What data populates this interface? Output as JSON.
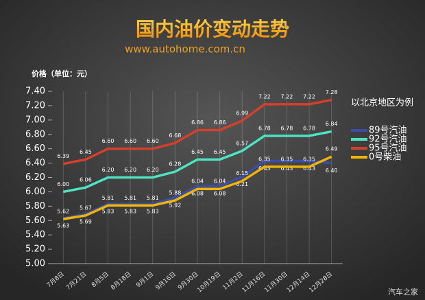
{
  "chart_data": {
    "type": "line",
    "title": "国内油价变动走势",
    "subtitle": "www.autohome.com.cn",
    "y_label": "价格（单位：元）",
    "legend_title": "以北京地区为例",
    "watermark": "汽车之家",
    "categories": [
      "7月8日",
      "7月21日",
      "8月5日",
      "8月18日",
      "9月1日",
      "9月16日",
      "9月30日",
      "10月19日",
      "11月2日",
      "11月16日",
      "11月30日",
      "12月14日",
      "12月28日"
    ],
    "series": [
      {
        "name": "89号汽油",
        "color": "#3b4ea6",
        "values": [
          5.63,
          5.69,
          5.83,
          5.83,
          5.83,
          5.92,
          6.08,
          6.08,
          6.21,
          6.43,
          6.43,
          6.43,
          6.4
        ],
        "value_labels": [
          "5.63",
          "5.69",
          "5.83",
          "5.83",
          "5.83",
          "5.92",
          "6.08",
          "6.08",
          "6.21",
          "6.43",
          "6.43",
          "6.43",
          "6.40"
        ]
      },
      {
        "name": "92号汽油",
        "color": "#4ee3c3",
        "values": [
          6,
          6.06,
          6.2,
          6.2,
          6.2,
          6.28,
          6.45,
          6.45,
          6.57,
          6.78,
          6.78,
          6.78,
          6.84
        ],
        "value_labels": [
          "6.00",
          "6.06",
          "6.20",
          "6.20",
          "6.20",
          "6.28",
          "6.45",
          "6.45",
          "6.57",
          "6.78",
          "6.78",
          "6.78",
          "6.84"
        ]
      },
      {
        "name": "95号汽油",
        "color": "#d5402b",
        "values": [
          6.39,
          6.45,
          6.6,
          6.6,
          6.6,
          6.68,
          6.86,
          6.86,
          6.99,
          7.22,
          7.22,
          7.22,
          7.28
        ],
        "value_labels": [
          "6.39",
          "6.45",
          "6.60",
          "6.60",
          "6.60",
          "6.68",
          "6.86",
          "6.86",
          "6.99",
          "7.22",
          "7.22",
          "7.22",
          "7.28"
        ]
      },
      {
        "name": "0号柴油",
        "color": "#f2b400",
        "values": [
          5.62,
          5.67,
          5.81,
          5.81,
          5.81,
          5.88,
          6.04,
          6.04,
          6.15,
          6.35,
          6.35,
          6.35,
          6.49
        ],
        "value_labels": [
          "5.62",
          "5.67",
          "5.81",
          "5.81",
          "5.81",
          "5.88",
          "6.04",
          "6.04",
          "6.15",
          "6.35",
          "6.35",
          "6.35",
          "6.49"
        ]
      }
    ],
    "ylim": [
      5,
      7.4
    ],
    "yticks": [
      {
        "value": 5,
        "label": "5.00"
      },
      {
        "value": 5.2,
        "label": "5.20"
      },
      {
        "value": 5.4,
        "label": "5.40"
      },
      {
        "value": 5.6,
        "label": "5.60"
      },
      {
        "value": 5.8,
        "label": "5.80"
      },
      {
        "value": 6,
        "label": "6.00"
      },
      {
        "value": 6.2,
        "label": "6.20"
      },
      {
        "value": 6.4,
        "label": "6.40"
      },
      {
        "value": 6.6,
        "label": "6.60"
      },
      {
        "value": 6.8,
        "label": "6.80"
      },
      {
        "value": 7,
        "label": "7.00"
      },
      {
        "value": 7.2,
        "label": "7.20"
      },
      {
        "value": 7.4,
        "label": "7.40"
      }
    ]
  }
}
